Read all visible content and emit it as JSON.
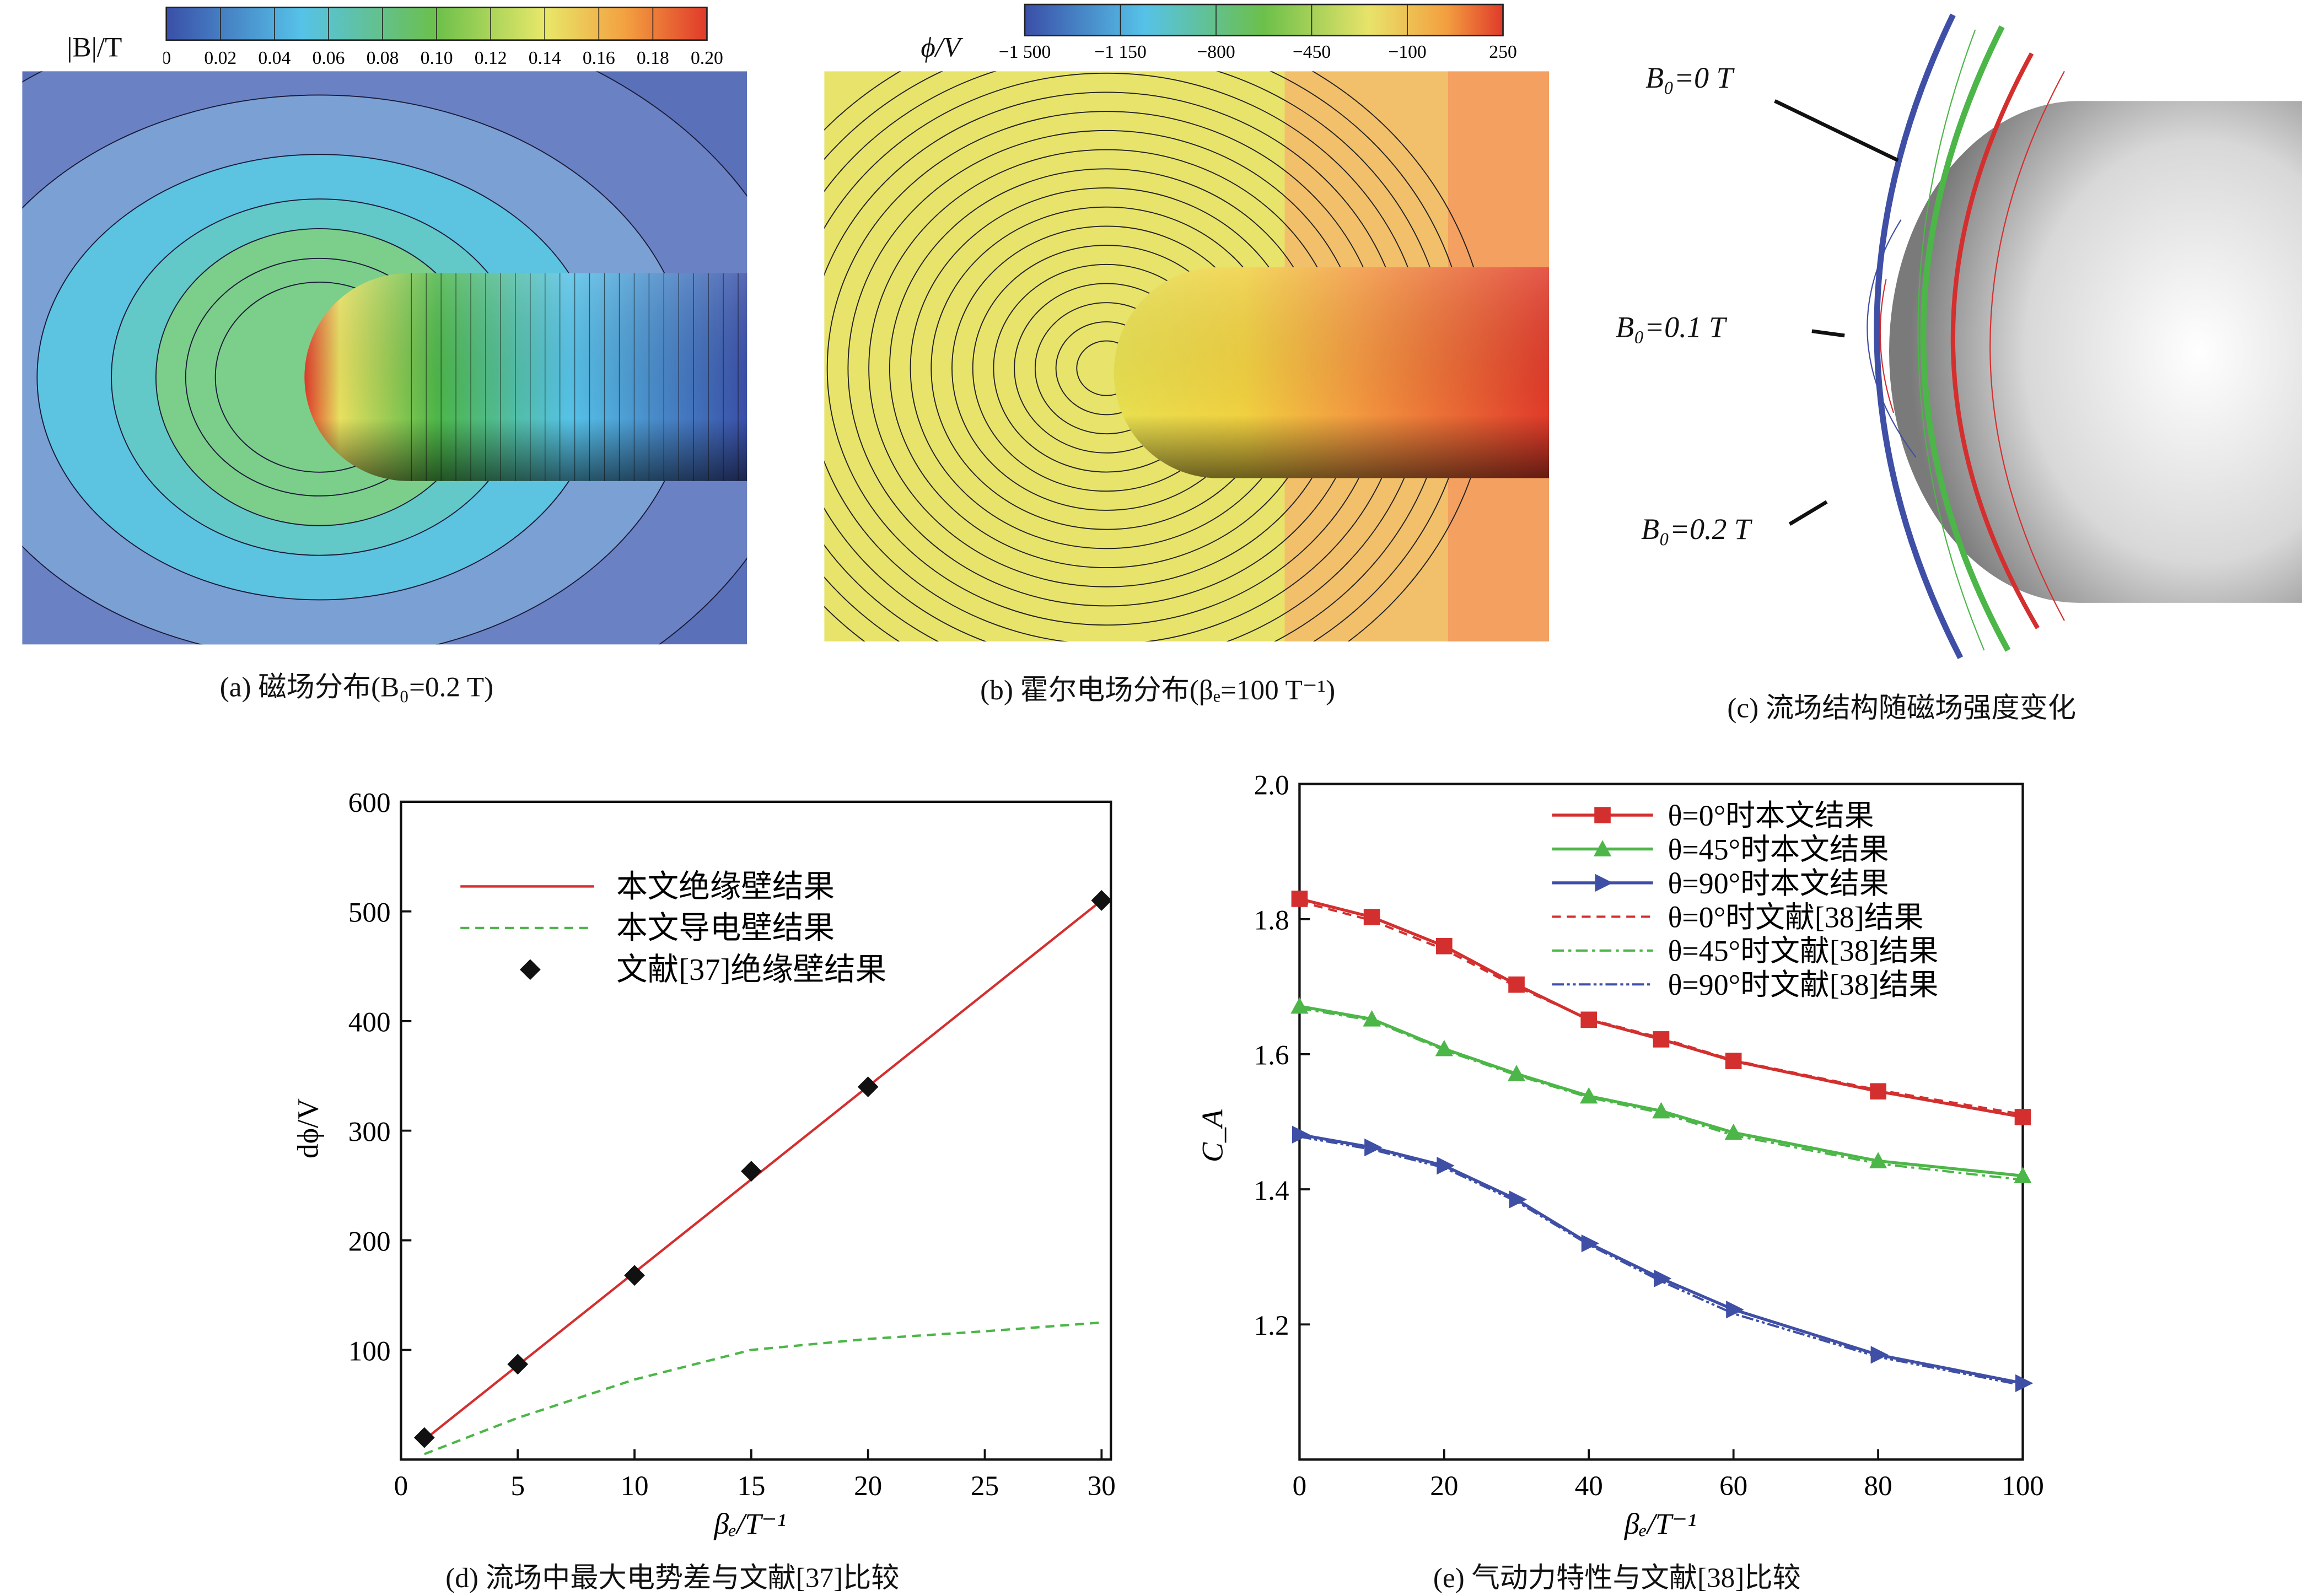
{
  "panel_a": {
    "colorbar_label": "|B|/T",
    "colorbar_ticks": [
      "0",
      "0.02",
      "0.04",
      "0.06",
      "0.08",
      "0.10",
      "0.12",
      "0.14",
      "0.16",
      "0.18",
      "0.20"
    ],
    "caption": "(a) 磁场分布(B₀=0.2 T)"
  },
  "panel_b": {
    "colorbar_label": "ϕ/V",
    "colorbar_ticks": [
      "−1 500",
      "−1 150",
      "−800",
      "−450",
      "−100",
      "250"
    ],
    "caption": "(b) 霍尔电场分布(βₑ=100 T⁻¹)"
  },
  "panel_c": {
    "labels": [
      "B₀=0 T",
      "B₀=0.1 T",
      "B₀=0.2 T"
    ],
    "caption": "(c) 流场结构随磁场强度变化"
  },
  "colors": {
    "red": "#d42f2f",
    "green": "#4cb648",
    "blue": "#3f4fa6",
    "black": "#111111"
  },
  "chart_data": [
    {
      "type": "line",
      "xlabel": "βₑ/T⁻¹",
      "ylabel": "dϕ/V",
      "xlim": [
        0,
        30.4
      ],
      "ylim": [
        0,
        600
      ],
      "xticks": [
        0,
        5,
        10,
        15,
        20,
        25,
        30
      ],
      "yticks": [
        100,
        200,
        300,
        400,
        500,
        600
      ],
      "legend_position": "top-left",
      "grid": false,
      "caption": "(d) 流场中最大电势差与文献[37]比较",
      "series": [
        {
          "name": "本文绝缘壁结果",
          "style": "solid",
          "color": "#d42f2f",
          "x": [
            1,
            30
          ],
          "y": [
            18,
            510
          ]
        },
        {
          "name": "本文导电壁结果",
          "style": "dashed",
          "color": "#4cb648",
          "x": [
            1,
            5,
            10,
            15,
            20,
            25,
            30
          ],
          "y": [
            5,
            38,
            73,
            100,
            110,
            117,
            125
          ]
        },
        {
          "name": "文献[37]绝缘壁结果",
          "style": "marker-diamond",
          "color": "#111111",
          "x": [
            1,
            5,
            10,
            15,
            20,
            30
          ],
          "y": [
            20,
            87,
            168,
            263,
            340,
            510
          ]
        }
      ]
    },
    {
      "type": "line",
      "xlabel": "βₑ/T⁻¹",
      "ylabel": "C_A",
      "xlim": [
        0,
        100
      ],
      "ylim": [
        1.0,
        2.0
      ],
      "xticks": [
        0,
        20,
        40,
        60,
        80,
        100
      ],
      "yticks": [
        1.2,
        1.4,
        1.6,
        1.8,
        2.0
      ],
      "legend_position": "top-right",
      "grid": false,
      "caption": "(e) 气动力特性与文献[38]比较",
      "x": [
        0,
        10,
        20,
        30,
        40,
        50,
        60,
        80,
        100
      ],
      "series": [
        {
          "name": "θ=0°时本文结果",
          "style": "solid",
          "marker": "square",
          "color": "#d42f2f",
          "y": [
            1.83,
            1.803,
            1.76,
            1.703,
            1.651,
            1.622,
            1.59,
            1.545,
            1.507
          ]
        },
        {
          "name": "θ=45°时本文结果",
          "style": "solid",
          "marker": "triangle-up",
          "color": "#4cb648",
          "y": [
            1.671,
            1.652,
            1.608,
            1.571,
            1.538,
            1.516,
            1.484,
            1.442,
            1.42
          ]
        },
        {
          "name": "θ=90°时本文结果",
          "style": "solid",
          "marker": "triangle-right",
          "color": "#3f4fa6",
          "y": [
            1.481,
            1.462,
            1.435,
            1.385,
            1.32,
            1.268,
            1.222,
            1.155,
            1.113
          ]
        },
        {
          "name": "θ=0°时文献[38]结果",
          "style": "dashed",
          "color": "#d42f2f",
          "y": [
            1.826,
            1.798,
            1.755,
            1.7,
            1.652,
            1.624,
            1.591,
            1.547,
            1.511
          ]
        },
        {
          "name": "θ=45°时文献[38]结果",
          "style": "dashdot",
          "color": "#4cb648",
          "y": [
            1.668,
            1.65,
            1.606,
            1.569,
            1.536,
            1.513,
            1.48,
            1.438,
            1.414
          ]
        },
        {
          "name": "θ=90°时文献[38]结果",
          "style": "dashdotdot",
          "color": "#3f4fa6",
          "y": [
            1.478,
            1.459,
            1.432,
            1.382,
            1.318,
            1.264,
            1.216,
            1.152,
            1.11
          ]
        }
      ]
    }
  ]
}
